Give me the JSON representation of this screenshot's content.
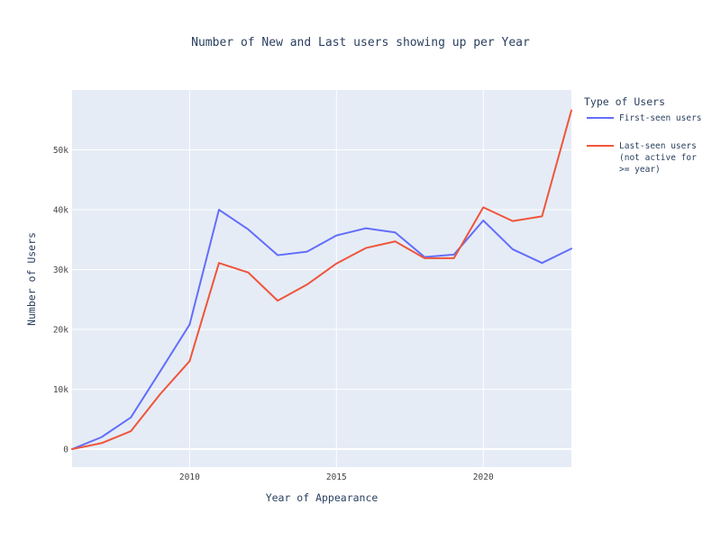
{
  "chart_data": {
    "type": "line",
    "title": "Number of New and Last users showing up per Year",
    "xlabel": "Year of Appearance",
    "ylabel": "Number of Users",
    "xlim": [
      2006,
      2023
    ],
    "ylim": [
      -3000,
      60000
    ],
    "x_ticks": [
      2010,
      2015,
      2020
    ],
    "y_ticks": [
      0,
      10000,
      20000,
      30000,
      40000,
      50000
    ],
    "y_tick_labels": [
      "0",
      "10k",
      "20k",
      "30k",
      "40k",
      "50k"
    ],
    "x": [
      2006,
      2007,
      2008,
      2009,
      2010,
      2011,
      2012,
      2013,
      2014,
      2015,
      2016,
      2017,
      2018,
      2019,
      2020,
      2021,
      2022,
      2023
    ],
    "legend_title": "Type of Users",
    "legend_position": "right",
    "grid": true,
    "series": [
      {
        "name": "First-seen users",
        "color": "#636efa",
        "values": [
          0,
          2000,
          5300,
          13000,
          20800,
          40000,
          36700,
          32400,
          33000,
          35700,
          36900,
          36200,
          32100,
          32500,
          38200,
          33400,
          31100,
          33500
        ]
      },
      {
        "name": "Last-seen users (not active for >= year)",
        "name_lines": [
          "Last-seen users",
          "(not active for",
          ">= year)"
        ],
        "color": "#ef553b",
        "values": [
          0,
          1000,
          3000,
          9200,
          14700,
          31100,
          29500,
          24800,
          27500,
          31000,
          33600,
          34700,
          31900,
          31900,
          40400,
          38100,
          38900,
          56600
        ]
      }
    ]
  },
  "colors": {
    "plot_bg": "#e5ecf6",
    "grid": "#ffffff",
    "text": "#2a3f5f",
    "tick_text": "#444444"
  }
}
